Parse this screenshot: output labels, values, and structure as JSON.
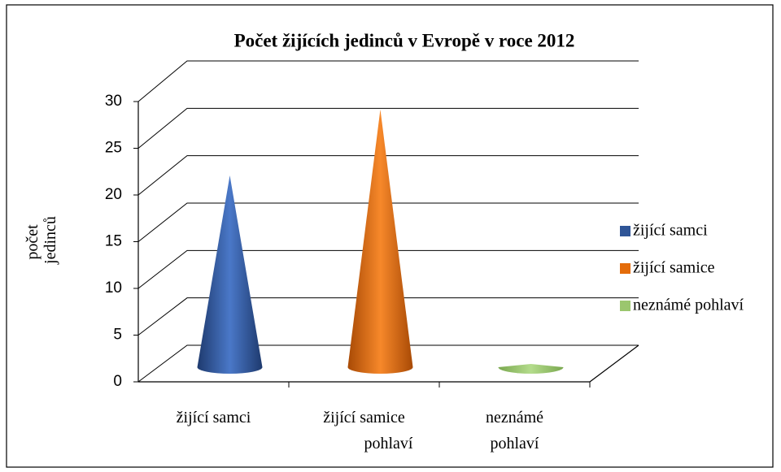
{
  "chart_data": {
    "type": "cone",
    "title": "Počet žijících jedinců v Evropě v roce 2012",
    "y_label": "počet jedinců",
    "categories": [
      "žijící samci",
      "žijící samice pohlaví",
      "neznámé pohlaví"
    ],
    "series": [
      {
        "name": "žijící samci",
        "color": "#2f5597",
        "values": [
          20,
          null,
          null
        ]
      },
      {
        "name": "žijící samice",
        "color": "#e46c0a",
        "values": [
          null,
          27,
          null
        ]
      },
      {
        "name": "neznámé pohlaví",
        "color": "#9bc66e",
        "values": [
          null,
          null,
          0
        ]
      }
    ],
    "ylim": [
      0,
      30
    ],
    "yticks": [
      0,
      5,
      10,
      15,
      20,
      25,
      30
    ],
    "grid": true,
    "legend": "right"
  }
}
